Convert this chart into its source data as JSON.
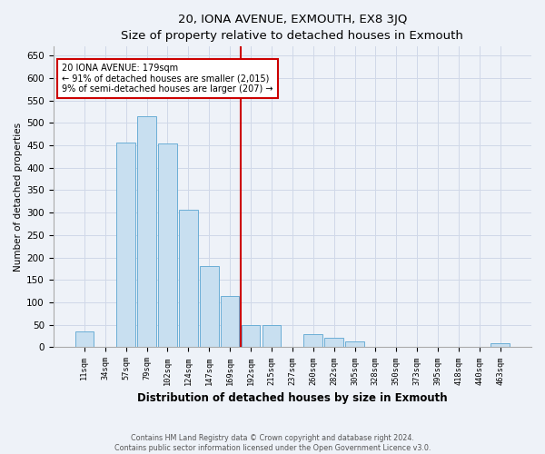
{
  "title": "20, IONA AVENUE, EXMOUTH, EX8 3JQ",
  "subtitle": "Size of property relative to detached houses in Exmouth",
  "xlabel": "Distribution of detached houses by size in Exmouth",
  "ylabel": "Number of detached properties",
  "bar_labels": [
    "11sqm",
    "34sqm",
    "57sqm",
    "79sqm",
    "102sqm",
    "124sqm",
    "147sqm",
    "169sqm",
    "192sqm",
    "215sqm",
    "237sqm",
    "260sqm",
    "282sqm",
    "305sqm",
    "328sqm",
    "350sqm",
    "373sqm",
    "395sqm",
    "418sqm",
    "440sqm",
    "463sqm"
  ],
  "bar_values": [
    35,
    0,
    457,
    515,
    455,
    307,
    182,
    115,
    50,
    50,
    0,
    30,
    22,
    13,
    0,
    0,
    0,
    0,
    0,
    0,
    8
  ],
  "bar_color": "#c8dff0",
  "bar_edge_color": "#6baed6",
  "vline_x": 8.0,
  "vline_color": "#cc0000",
  "annotation_text": "20 IONA AVENUE: 179sqm\n← 91% of detached houses are smaller (2,015)\n9% of semi-detached houses are larger (207) →",
  "annotation_box_color": "#ffffff",
  "annotation_box_edge": "#cc0000",
  "ylim": [
    0,
    670
  ],
  "yticks": [
    0,
    50,
    100,
    150,
    200,
    250,
    300,
    350,
    400,
    450,
    500,
    550,
    600,
    650
  ],
  "footer_text": "Contains HM Land Registry data © Crown copyright and database right 2024.\nContains public sector information licensed under the Open Government Licence v3.0.",
  "bg_color": "#eef2f8",
  "grid_color": "#d0d8e8",
  "title_fontsize": 9.5,
  "subtitle_fontsize": 8.5
}
